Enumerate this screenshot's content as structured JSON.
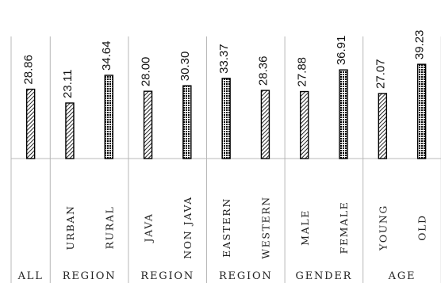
{
  "chart_data": {
    "type": "bar",
    "categories": [
      "",
      "URBAN",
      "RURAL",
      "JAVA",
      "NON JAVA",
      "EASTERN",
      "WESTERN",
      "MALE",
      "FEMALE",
      "YOUNG",
      "OLD"
    ],
    "values": [
      28.86,
      23.11,
      34.64,
      28.0,
      30.3,
      33.37,
      28.36,
      27.88,
      36.91,
      27.07,
      39.23
    ],
    "value_labels": [
      "28.86",
      "23.11",
      "34.64",
      "28.00",
      "30.30",
      "33.37",
      "28.36",
      "27.88",
      "36.91",
      "27.07",
      "39.23"
    ],
    "patterns": [
      "diagonal",
      "diagonal",
      "dotted",
      "diagonal",
      "dotted",
      "dotted",
      "diagonal",
      "diagonal",
      "dotted",
      "diagonal",
      "dotted"
    ],
    "groups": [
      {
        "label": "ALL",
        "count": 1
      },
      {
        "label": "REGION",
        "count": 2
      },
      {
        "label": "REGION",
        "count": 2
      },
      {
        "label": "REGION",
        "count": 2
      },
      {
        "label": "GENDER",
        "count": 2
      },
      {
        "label": "AGE",
        "count": 2
      }
    ],
    "ylim": [
      0,
      46
    ],
    "grid": false,
    "legend": "none",
    "title": "",
    "xlabel": "",
    "ylabel": "",
    "colors": {
      "bar_stroke": "#000000",
      "bar_fill": "#ffffff",
      "axis": "#b8b8b8",
      "text": "#222222"
    }
  }
}
